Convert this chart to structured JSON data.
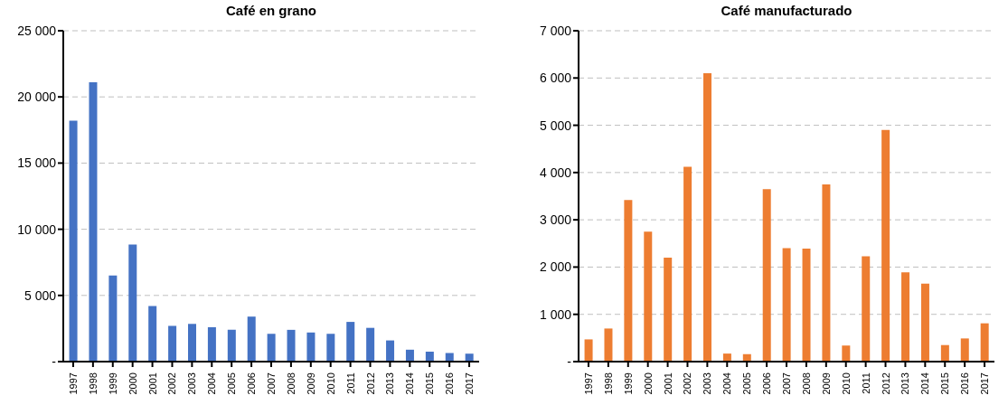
{
  "chart_data": [
    {
      "type": "bar",
      "title": "Café en grano",
      "categories": [
        "1997",
        "1998",
        "1999",
        "2000",
        "2001",
        "2002",
        "2003",
        "2004",
        "2005",
        "2006",
        "2007",
        "2008",
        "2009",
        "2010",
        "2011",
        "2012",
        "2013",
        "2014",
        "2015",
        "2016",
        "2017"
      ],
      "values": [
        18200,
        21100,
        6500,
        8850,
        4200,
        2700,
        2850,
        2600,
        2400,
        3400,
        2100,
        2400,
        2200,
        2100,
        3000,
        2550,
        1600,
        900,
        750,
        650,
        600
      ],
      "color": "#4472c4",
      "ylim": [
        0,
        25000
      ],
      "yticks": [
        {
          "value": 0,
          "label": "-"
        },
        {
          "value": 5000,
          "label": "5 000"
        },
        {
          "value": 10000,
          "label": "10 000"
        },
        {
          "value": 15000,
          "label": "15 000"
        },
        {
          "value": 20000,
          "label": "20 000"
        },
        {
          "value": 25000,
          "label": "25 000"
        }
      ],
      "grid": "y"
    },
    {
      "type": "bar",
      "title": "Café manufacturado",
      "categories": [
        "1997",
        "1998",
        "1999",
        "2000",
        "2001",
        "2002",
        "2003",
        "2004",
        "2005",
        "2006",
        "2007",
        "2008",
        "2009",
        "2010",
        "2011",
        "2012",
        "2013",
        "2014",
        "2015",
        "2016",
        "2017"
      ],
      "values": [
        470,
        700,
        3420,
        2750,
        2200,
        4120,
        6100,
        170,
        160,
        3650,
        2400,
        2390,
        3750,
        340,
        2230,
        4900,
        1890,
        1650,
        350,
        490,
        810
      ],
      "color": "#ed7d31",
      "ylim": [
        0,
        7000
      ],
      "yticks": [
        {
          "value": 0,
          "label": "-"
        },
        {
          "value": 1000,
          "label": "1 000"
        },
        {
          "value": 2000,
          "label": "2 000"
        },
        {
          "value": 3000,
          "label": "3 000"
        },
        {
          "value": 4000,
          "label": "4 000"
        },
        {
          "value": 5000,
          "label": "5 000"
        },
        {
          "value": 6000,
          "label": "6 000"
        },
        {
          "value": 7000,
          "label": "7 000"
        }
      ],
      "grid": "y"
    }
  ]
}
